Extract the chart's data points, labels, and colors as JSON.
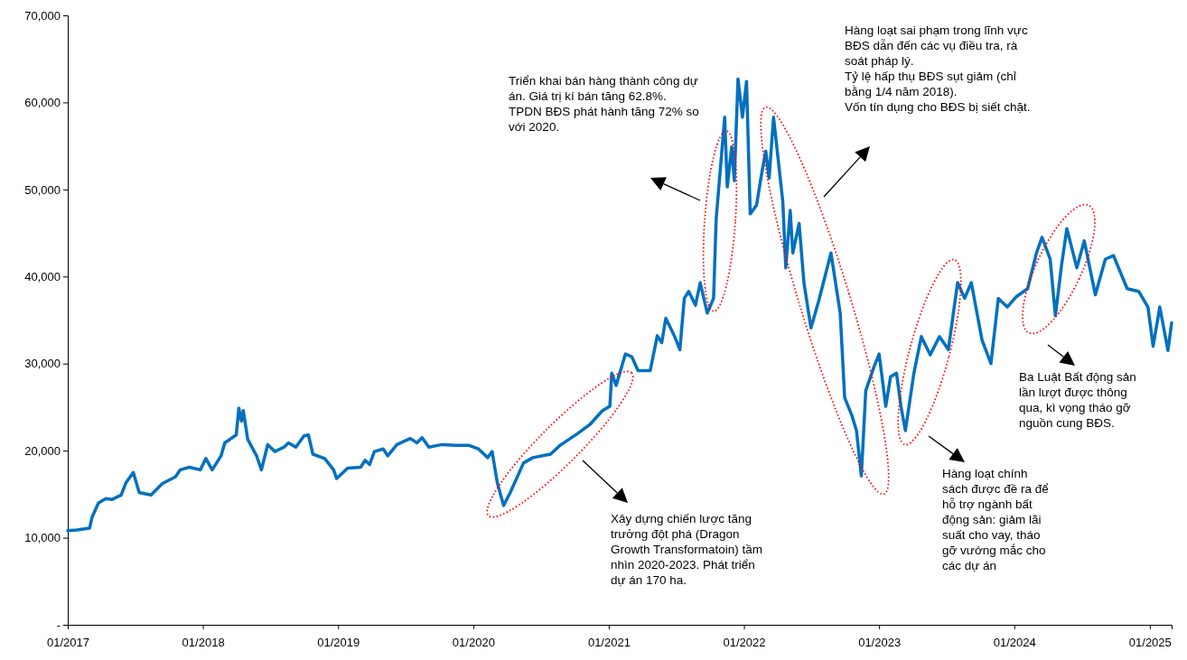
{
  "chart_data": {
    "type": "line",
    "x": [
      "2017-01-01",
      "2017-01-25",
      "2017-03-01",
      "2017-03-08",
      "2017-03-25",
      "2017-04-14",
      "2017-05-01",
      "2017-05-25",
      "2017-06-07",
      "2017-06-27",
      "2017-07-13",
      "2017-08-14",
      "2017-09-13",
      "2017-10-19",
      "2017-11-01",
      "2017-11-25",
      "2017-12-25",
      "2018-01-09",
      "2018-01-26",
      "2018-02-19",
      "2018-03-01",
      "2018-04-01",
      "2018-04-08",
      "2018-04-15",
      "2018-04-20",
      "2018-05-02",
      "2018-05-26",
      "2018-06-08",
      "2018-06-25",
      "2018-07-14",
      "2018-08-08",
      "2018-08-20",
      "2018-09-09",
      "2018-10-01",
      "2018-10-13",
      "2018-10-25",
      "2018-11-26",
      "2018-12-20",
      "2018-12-28",
      "2019-01-27",
      "2019-03-03",
      "2019-03-15",
      "2019-03-27",
      "2019-04-09",
      "2019-05-03",
      "2019-05-15",
      "2019-06-09",
      "2019-07-15",
      "2019-08-02",
      "2019-08-16",
      "2019-09-03",
      "2019-10-09",
      "2019-11-15",
      "2019-12-21",
      "2020-01-15",
      "2020-02-09",
      "2020-02-21",
      "2020-03-06",
      "2020-03-23",
      "2020-04-10",
      "2020-05-16",
      "2020-06-10",
      "2020-07-28",
      "2020-08-22",
      "2020-10-10",
      "2020-11-11",
      "2020-12-15",
      "2021-01-04",
      "2021-01-09",
      "2021-01-21",
      "2021-02-15",
      "2021-03-04",
      "2021-03-21",
      "2021-04-23",
      "2021-05-12",
      "2021-05-24",
      "2021-06-04",
      "2021-06-28",
      "2021-07-12",
      "2021-07-24",
      "2021-08-05",
      "2021-08-23",
      "2021-09-05",
      "2021-09-24",
      "2021-10-11",
      "2021-10-18",
      "2021-11-10",
      "2021-11-17",
      "2021-11-29",
      "2021-12-06",
      "2021-12-16",
      "2021-12-28",
      "2022-01-08",
      "2022-01-18",
      "2022-02-04",
      "2022-02-19",
      "2022-03-01",
      "2022-03-10",
      "2022-03-22",
      "2022-04-16",
      "2022-04-24",
      "2022-05-06",
      "2022-05-13",
      "2022-05-30",
      "2022-06-12",
      "2022-07-01",
      "2022-07-22",
      "2022-08-24",
      "2022-09-18",
      "2022-09-30",
      "2022-10-19",
      "2022-11-01",
      "2022-11-14",
      "2022-11-26",
      "2022-12-18",
      "2023-01-01",
      "2023-01-19",
      "2023-02-01",
      "2023-02-17",
      "2023-03-01",
      "2023-03-13",
      "2023-04-05",
      "2023-04-25",
      "2023-05-19",
      "2023-06-13",
      "2023-07-07",
      "2023-08-01",
      "2023-08-20",
      "2023-09-07",
      "2023-10-06",
      "2023-10-30",
      "2023-11-19",
      "2023-12-13",
      "2024-01-07",
      "2024-02-06",
      "2024-03-01",
      "2024-03-16",
      "2024-04-07",
      "2024-04-21",
      "2024-05-08",
      "2024-05-22",
      "2024-06-18",
      "2024-07-08",
      "2024-08-07",
      "2024-09-03",
      "2024-09-25",
      "2024-11-01",
      "2024-12-02",
      "2024-12-27",
      "2025-01-10",
      "2025-01-28",
      "2025-02-19",
      "2025-03-01"
    ],
    "series": [
      {
        "color": "#0070c0",
        "values": [
          10800,
          10900,
          11100,
          12400,
          14000,
          14500,
          14400,
          14900,
          16300,
          17500,
          15200,
          14900,
          16200,
          17000,
          17800,
          18100,
          17800,
          19100,
          17800,
          19400,
          20900,
          21800,
          24900,
          23400,
          24600,
          21300,
          19400,
          17800,
          20700,
          19900,
          20400,
          20900,
          20400,
          21700,
          21800,
          19600,
          19100,
          17800,
          16800,
          18000,
          18100,
          18900,
          18400,
          19900,
          20200,
          19400,
          20700,
          21400,
          20900,
          21500,
          20400,
          20700,
          20600,
          20600,
          20200,
          19200,
          19900,
          16300,
          13700,
          15200,
          18600,
          19200,
          19600,
          20600,
          22000,
          23000,
          24600,
          25100,
          28900,
          27500,
          31100,
          30800,
          29200,
          29200,
          33200,
          32400,
          35200,
          33100,
          31600,
          37500,
          38300,
          36700,
          39300,
          35800,
          37500,
          46600,
          58300,
          50300,
          54900,
          51000,
          62700,
          58300,
          62400,
          47200,
          48200,
          52100,
          54400,
          51300,
          58300,
          48600,
          41000,
          47600,
          42700,
          46100,
          39300,
          34100,
          37200,
          42700,
          35800,
          26100,
          24100,
          22300,
          17100,
          26900,
          29600,
          31100,
          25100,
          28500,
          28900,
          25100,
          22300,
          28900,
          33100,
          31000,
          33100,
          31600,
          39300,
          37500,
          39300,
          32700,
          30000,
          37500,
          36500,
          37700,
          38600,
          42700,
          44500,
          42000,
          35500,
          41400,
          45500,
          41000,
          44100,
          37900,
          42000,
          42400,
          38600,
          38300,
          36500,
          32000,
          36500,
          31500,
          34700
        ]
      }
    ],
    "xlim": [
      "2017-01-01",
      "2025-03-01"
    ],
    "xticks": [
      {
        "value": "2017-01-01",
        "label": "01/2017"
      },
      {
        "value": "2018-01-01",
        "label": "01/2018"
      },
      {
        "value": "2019-01-01",
        "label": "01/2019"
      },
      {
        "value": "2020-01-01",
        "label": "01/2020"
      },
      {
        "value": "2021-01-01",
        "label": "01/2021"
      },
      {
        "value": "2022-01-01",
        "label": "01/2022"
      },
      {
        "value": "2023-01-01",
        "label": "01/2023"
      },
      {
        "value": "2024-01-01",
        "label": "01/2024"
      },
      {
        "value": "2025-01-01",
        "label": "01/2025"
      }
    ],
    "ylim": [
      0,
      70000
    ],
    "yticks": [
      {
        "value": 0,
        "label": "-"
      },
      {
        "value": 10000,
        "label": "10,000"
      },
      {
        "value": 20000,
        "label": "20,000"
      },
      {
        "value": 30000,
        "label": "30,000"
      },
      {
        "value": 40000,
        "label": "40,000"
      },
      {
        "value": 50000,
        "label": "50,000"
      },
      {
        "value": 60000,
        "label": "60,000"
      },
      {
        "value": 70000,
        "label": "70,000"
      }
    ],
    "grid": false,
    "annotations": [
      "Hàng loạt sai phạm trong lĩnh vực BĐS dẫn đến các vụ điều tra, rà soát pháp lý.\nTỷ lệ hấp thụ BĐS sụt giảm (chỉ bằng 1/4 năm 2018).\nVốn tín dụng cho BĐS bị siết chặt.",
      "Triển khai bán hàng thành công dự án. Giá trị kí bán tăng 62.8%.\nTPDN BĐS phát hành tăng 72% so với 2020.",
      "Ba Luật Bất động sản lần lượt được thông qua, kì vọng tháo gỡ nguồn cung BĐS.",
      "Hàng loạt chính sách được đề ra để hỗ trợ ngành bất động sản: giảm lãi suất cho vay, tháo gỡ vướng mắc cho các dự án",
      "Xây dựng chiến lược tăng trưởng đột phá (Dragon Growth Transformatoin) tầm nhìn 2020-2023. Phát triển dự án 170 ha."
    ]
  }
}
